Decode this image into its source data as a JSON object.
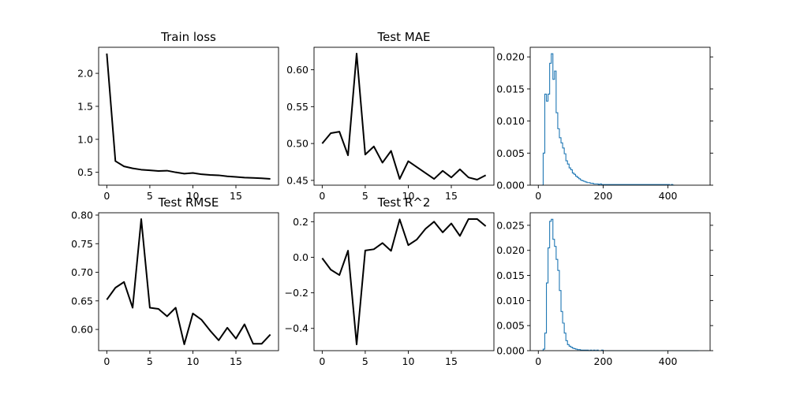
{
  "figure": {
    "width": 1000,
    "height": 500,
    "background": "#ffffff"
  },
  "chart_data": [
    {
      "id": "train-loss",
      "type": "line",
      "title": "Train loss",
      "x": [
        0,
        1,
        2,
        3,
        4,
        5,
        6,
        7,
        8,
        9,
        10,
        11,
        12,
        13,
        14,
        15,
        16,
        17,
        18,
        19
      ],
      "series": [
        {
          "values": [
            2.3,
            0.67,
            0.59,
            0.56,
            0.54,
            0.53,
            0.52,
            0.525,
            0.5,
            0.48,
            0.49,
            0.47,
            0.46,
            0.455,
            0.44,
            0.43,
            0.42,
            0.415,
            0.41,
            0.4
          ],
          "color": "#000000"
        }
      ],
      "xlim": [
        -0.95,
        19.95
      ],
      "ylim": [
        0.305,
        2.395
      ],
      "xticks": [
        0,
        5,
        10,
        15
      ],
      "xtick_labels": [
        "0",
        "5",
        "10",
        "15"
      ],
      "yticks": [
        0.5,
        1.0,
        1.5,
        2.0
      ],
      "ytick_labels": [
        "0.5",
        "1.0",
        "1.5",
        "2.0"
      ],
      "grid": false
    },
    {
      "id": "test-mae",
      "type": "line",
      "title": "Test MAE",
      "x": [
        0,
        1,
        2,
        3,
        4,
        5,
        6,
        7,
        8,
        9,
        10,
        11,
        12,
        13,
        14,
        15,
        16,
        17,
        18,
        19
      ],
      "series": [
        {
          "values": [
            0.5,
            0.514,
            0.516,
            0.484,
            0.622,
            0.485,
            0.496,
            0.474,
            0.49,
            0.452,
            0.476,
            0.468,
            0.46,
            0.452,
            0.463,
            0.454,
            0.465,
            0.454,
            0.451,
            0.457
          ],
          "color": "#000000"
        }
      ],
      "xlim": [
        -0.95,
        19.95
      ],
      "ylim": [
        0.4435,
        0.6305
      ],
      "xticks": [
        0,
        5,
        10,
        15
      ],
      "xtick_labels": [
        "0",
        "5",
        "10",
        "15"
      ],
      "yticks": [
        0.45,
        0.5,
        0.55,
        0.6
      ],
      "ytick_labels": [
        "0.45",
        "0.50",
        "0.55",
        "0.60"
      ],
      "grid": false
    },
    {
      "id": "hist-top",
      "type": "histogram",
      "title": "",
      "bin_start": 10,
      "bin_width": 5,
      "counts": [
        0.0,
        0.005,
        0.0142,
        0.0131,
        0.0142,
        0.019,
        0.0205,
        0.0165,
        0.0178,
        0.0113,
        0.0088,
        0.0074,
        0.0066,
        0.0058,
        0.0049,
        0.0038,
        0.0033,
        0.0027,
        0.0024,
        0.0019,
        0.0017,
        0.0014,
        0.0012,
        0.001,
        0.0008,
        0.0007,
        0.0006,
        0.0005,
        0.0004,
        0.0004,
        0.0003,
        0.0003,
        0.0002,
        0.0002,
        0.0002,
        0.0001,
        0.0002,
        0.0001,
        0.0001,
        0.0001,
        0.0001,
        0.0001,
        0.0001,
        0.0001,
        0.0001,
        0.0001,
        0.0001,
        0.0001,
        0.0001,
        0.0001,
        0.0001,
        0.0001,
        0.0001,
        0.0001,
        0.0001,
        0.0001,
        0.0001,
        0.0001,
        0.0001,
        0.0001,
        0.0001,
        0.0001,
        0.0001,
        0.0001,
        0.0001,
        0.0001,
        0.0001,
        0.0001,
        0.0001,
        0.0001,
        0.0001,
        0.0001,
        0.0001,
        0.0001,
        0.0001,
        0.0001,
        0.0001,
        0.0001,
        0.0001,
        0.0,
        0.0001,
        0.0
      ],
      "color": "#1f77b4",
      "xlim": [
        -25,
        530
      ],
      "ylim": [
        0,
        0.0215
      ],
      "xticks": [
        0,
        200,
        400
      ],
      "xtick_labels": [
        "0",
        "200",
        "400"
      ],
      "yticks": [
        0.0,
        0.005,
        0.01,
        0.015,
        0.02
      ],
      "ytick_labels": [
        "0.000",
        "0.005",
        "0.010",
        "0.015",
        "0.020"
      ],
      "grid": false
    },
    {
      "id": "test-rmse",
      "type": "line",
      "title": "Test RMSE",
      "x": [
        0,
        1,
        2,
        3,
        4,
        5,
        6,
        7,
        8,
        9,
        10,
        11,
        12,
        13,
        14,
        15,
        16,
        17,
        18,
        19
      ],
      "series": [
        {
          "values": [
            0.652,
            0.673,
            0.683,
            0.638,
            0.793,
            0.638,
            0.636,
            0.623,
            0.638,
            0.574,
            0.628,
            0.617,
            0.598,
            0.581,
            0.603,
            0.584,
            0.609,
            0.575,
            0.575,
            0.591
          ],
          "color": "#000000"
        }
      ],
      "xlim": [
        -0.95,
        19.95
      ],
      "ylim": [
        0.5629,
        0.8041
      ],
      "xticks": [
        0,
        5,
        10,
        15
      ],
      "xtick_labels": [
        "0",
        "5",
        "10",
        "15"
      ],
      "yticks": [
        0.6,
        0.65,
        0.7,
        0.75,
        0.8
      ],
      "ytick_labels": [
        "0.60",
        "0.65",
        "0.70",
        "0.75",
        "0.80"
      ],
      "grid": false
    },
    {
      "id": "test-r2",
      "type": "line",
      "title": "Test R^2",
      "x": [
        0,
        1,
        2,
        3,
        4,
        5,
        6,
        7,
        8,
        9,
        10,
        11,
        12,
        13,
        14,
        15,
        16,
        17,
        18,
        19
      ],
      "series": [
        {
          "values": [
            -0.005,
            -0.07,
            -0.1,
            0.037,
            -0.49,
            0.038,
            0.045,
            0.08,
            0.036,
            0.213,
            0.068,
            0.1,
            0.16,
            0.2,
            0.14,
            0.19,
            0.12,
            0.215,
            0.215,
            0.175
          ],
          "color": "#000000"
        }
      ],
      "xlim": [
        -0.95,
        19.95
      ],
      "ylim": [
        -0.5252,
        0.2502
      ],
      "xticks": [
        0,
        5,
        10,
        15
      ],
      "xtick_labels": [
        "0",
        "5",
        "10",
        "15"
      ],
      "yticks": [
        -0.4,
        -0.2,
        0.0,
        0.2
      ],
      "ytick_labels": [
        "−0.4",
        "−0.2",
        "0.0",
        "0.2"
      ],
      "grid": false
    },
    {
      "id": "hist-bottom",
      "type": "histogram",
      "title": "",
      "bin_start": 10,
      "bin_width": 5,
      "counts": [
        0.0,
        0.0003,
        0.0035,
        0.0135,
        0.0205,
        0.0258,
        0.0262,
        0.0222,
        0.0208,
        0.0182,
        0.016,
        0.012,
        0.0078,
        0.0055,
        0.0035,
        0.002,
        0.0012,
        0.0009,
        0.0007,
        0.0005,
        0.0004,
        0.0003,
        0.0002,
        0.0002,
        0.0001,
        0.0001,
        0.0001,
        0.0001,
        0.0001,
        0.0,
        0.0001,
        0.0,
        0.0001,
        0.0,
        0.0001,
        0.0,
        0.0,
        0.0001,
        0.0,
        0.0,
        0.0,
        0.0,
        0.0,
        0.0,
        0.0,
        0.0,
        0.0,
        0.0,
        0.0,
        0.0,
        0.0,
        0.0,
        0.0,
        0.0,
        0.0,
        0.0,
        0.0,
        0.0,
        0.0,
        0.0,
        0.0,
        0.0,
        0.0,
        0.0,
        0.0,
        0.0,
        0.0,
        0.0,
        0.0,
        0.0,
        0.0,
        0.0,
        0.0,
        0.0,
        0.0,
        0.0,
        0.0,
        0.0,
        0.0,
        0.0,
        0.0,
        0.0,
        0.0,
        0.0,
        0.0,
        0.0,
        0.0,
        0.0,
        0.0,
        0.0,
        0.0,
        0.0,
        0.0,
        0.0,
        0.0,
        0.0,
        0.0
      ],
      "color": "#1f77b4",
      "xlim": [
        -25,
        530
      ],
      "ylim": [
        0,
        0.0275
      ],
      "xticks": [
        0,
        200,
        400
      ],
      "xtick_labels": [
        "0",
        "200",
        "400"
      ],
      "yticks": [
        0.0,
        0.005,
        0.01,
        0.015,
        0.02,
        0.025
      ],
      "ytick_labels": [
        "0.000",
        "0.005",
        "0.010",
        "0.015",
        "0.020",
        "0.025"
      ],
      "grid": false
    }
  ]
}
